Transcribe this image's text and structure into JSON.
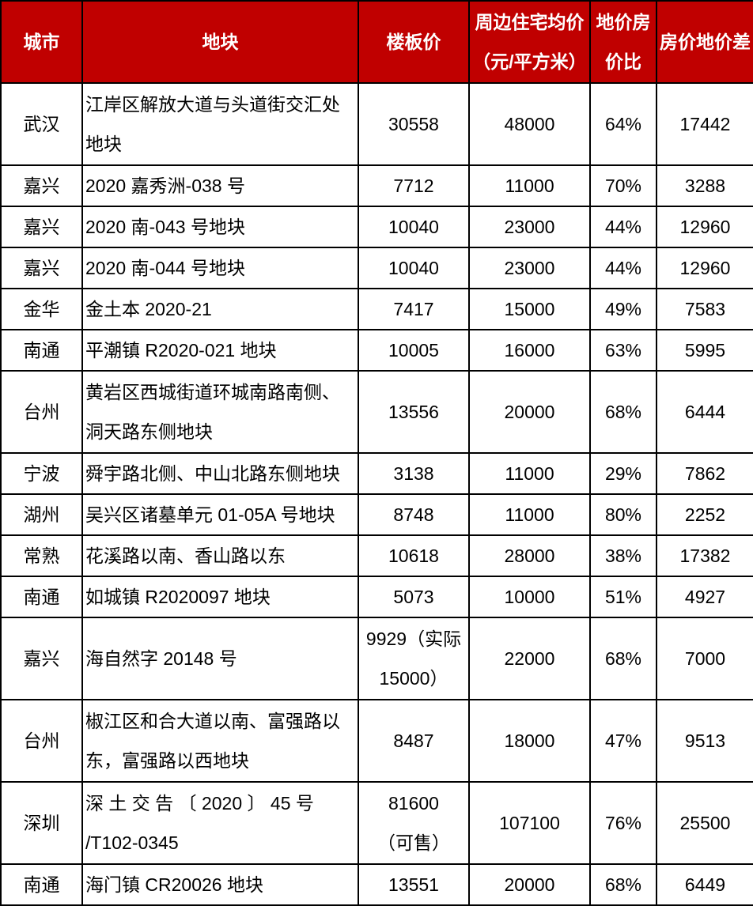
{
  "chart_data": {
    "type": "table",
    "title": "",
    "columns": [
      "城市",
      "地块",
      "楼板价",
      "周边住宅均价（元/平方米）",
      "地价房价比",
      "房价地价差"
    ],
    "rows": [
      [
        "武汉",
        "江岸区解放大道与头道街交汇处地块",
        "30558",
        "48000",
        "64%",
        "17442"
      ],
      [
        "嘉兴",
        "2020 嘉秀洲-038 号",
        "7712",
        "11000",
        "70%",
        "3288"
      ],
      [
        "嘉兴",
        "2020 南-043 号地块",
        "10040",
        "23000",
        "44%",
        "12960"
      ],
      [
        "嘉兴",
        "2020 南-044 号地块",
        "10040",
        "23000",
        "44%",
        "12960"
      ],
      [
        "金华",
        "金土本 2020-21",
        "7417",
        "15000",
        "49%",
        "7583"
      ],
      [
        "南通",
        "平潮镇 R2020-021 地块",
        "10005",
        "16000",
        "63%",
        "5995"
      ],
      [
        "台州",
        "黄岩区西城街道环城南路南侧、洞天路东侧地块",
        "13556",
        "20000",
        "68%",
        "6444"
      ],
      [
        "宁波",
        "舜宇路北侧、中山北路东侧地块",
        "3138",
        "11000",
        "29%",
        "7862"
      ],
      [
        "湖州",
        "吴兴区诸墓单元 01-05A 号地块",
        "8748",
        "11000",
        "80%",
        "2252"
      ],
      [
        "常熟",
        "花溪路以南、香山路以东",
        "10618",
        "28000",
        "38%",
        "17382"
      ],
      [
        "南通",
        "如城镇 R2020097 地块",
        "5073",
        "10000",
        "51%",
        "4927"
      ],
      [
        "嘉兴",
        "海自然字 20148 号",
        "9929（实际 15000）",
        "22000",
        "68%",
        "7000"
      ],
      [
        "台州",
        "椒江区和合大道以南、富强路以东，富强路以西地块",
        "8487",
        "18000",
        "47%",
        "9513"
      ],
      [
        "深圳",
        "深土交告〔2020〕45 号/T102-0345",
        "81600（可售）",
        "107100",
        "76%",
        "25500"
      ],
      [
        "南通",
        "海门镇 CR20026 地块",
        "13551",
        "20000",
        "68%",
        "6449"
      ]
    ]
  },
  "table": {
    "header": [
      "城市",
      "地块",
      "楼板价",
      [
        "周边住宅均价",
        "（元/平方米）"
      ],
      [
        "地价房",
        "价比"
      ],
      "房价地价差"
    ],
    "cells": [
      [
        "武汉",
        [
          "江岸区解放大道与头道街交汇处",
          "地块"
        ],
        "30558",
        "48000",
        "64%",
        "17442"
      ],
      [
        "嘉兴",
        "2020 嘉秀洲-038 号",
        "7712",
        "11000",
        "70%",
        "3288"
      ],
      [
        "嘉兴",
        "2020 南-043 号地块",
        "10040",
        "23000",
        "44%",
        "12960"
      ],
      [
        "嘉兴",
        "2020 南-044 号地块",
        "10040",
        "23000",
        "44%",
        "12960"
      ],
      [
        "金华",
        "金土本 2020-21",
        "7417",
        "15000",
        "49%",
        "7583"
      ],
      [
        "南通",
        "平潮镇 R2020-021 地块",
        "10005",
        "16000",
        "63%",
        "5995"
      ],
      [
        "台州",
        [
          "黄岩区西城街道环城南路南侧、",
          "洞天路东侧地块"
        ],
        "13556",
        "20000",
        "68%",
        "6444"
      ],
      [
        "宁波",
        "舜宇路北侧、中山北路东侧地块",
        "3138",
        "11000",
        "29%",
        "7862"
      ],
      [
        "湖州",
        "吴兴区诸墓单元 01-05A 号地块",
        "8748",
        "11000",
        "80%",
        "2252"
      ],
      [
        "常熟",
        "花溪路以南、香山路以东",
        "10618",
        "28000",
        "38%",
        "17382"
      ],
      [
        "南通",
        "如城镇 R2020097 地块",
        "5073",
        "10000",
        "51%",
        "4927"
      ],
      [
        "嘉兴",
        "海自然字 20148 号",
        [
          "9929（实际",
          "15000）"
        ],
        "22000",
        "68%",
        "7000"
      ],
      [
        "台州",
        [
          "椒江区和合大道以南、富强路以",
          "东，富强路以西地块"
        ],
        "8487",
        "18000",
        "47%",
        "9513"
      ],
      [
        "深圳",
        [
          "深 土 交 告 〔 2020 〕 45 号",
          "/T102-0345"
        ],
        [
          "81600",
          "（可售）"
        ],
        "107100",
        "76%",
        "25500"
      ],
      [
        "南通",
        "海门镇 CR20026 地块",
        "13551",
        "20000",
        "68%",
        "6449"
      ]
    ],
    "colors": {
      "header_bg": "#C00000",
      "header_text": "#FFFFFF",
      "border": "#000000",
      "body_bg": "#FFFFFF",
      "body_text": "#000000"
    }
  }
}
